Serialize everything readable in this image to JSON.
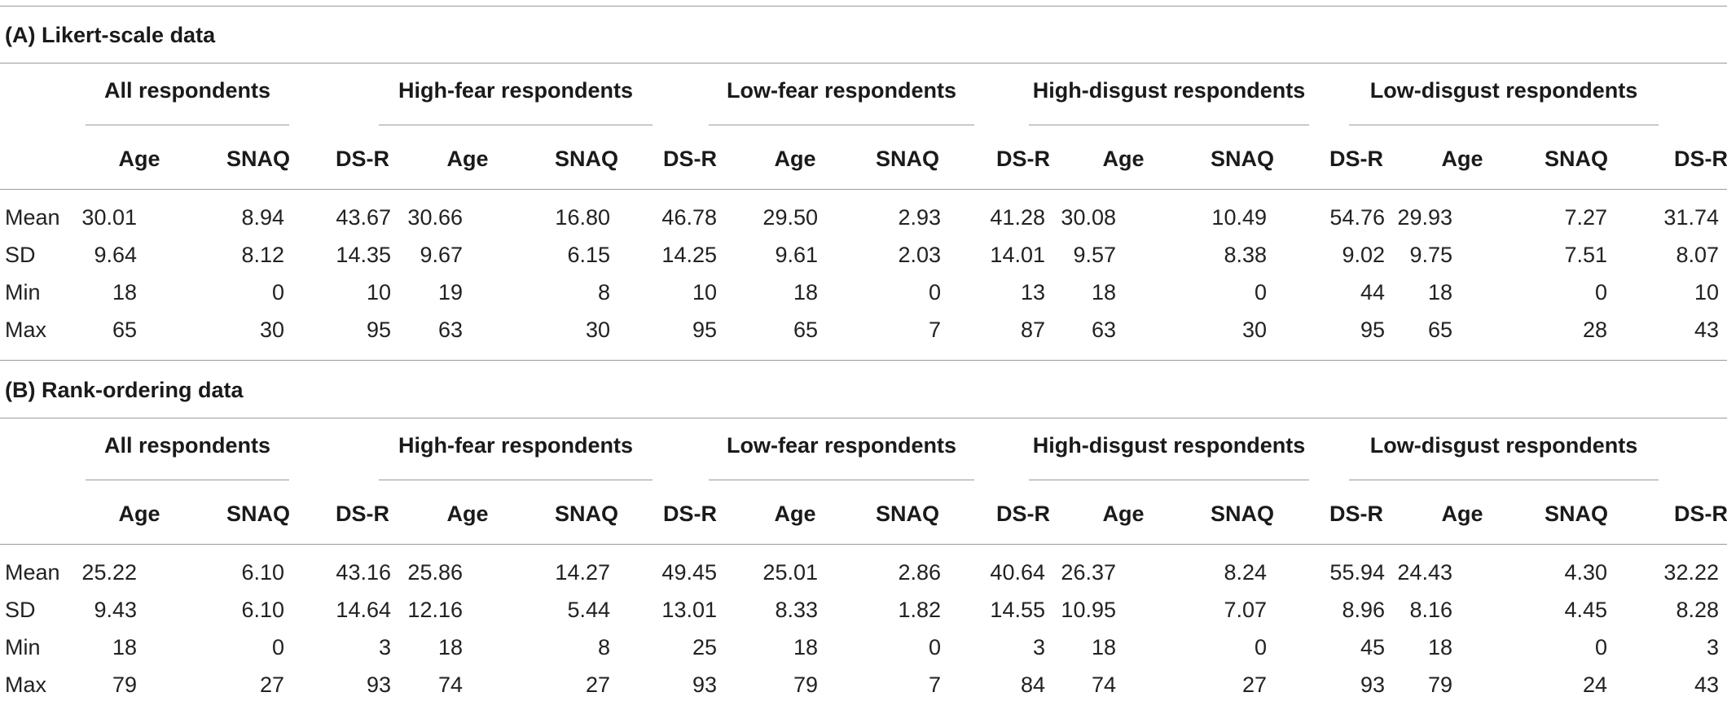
{
  "sections": [
    {
      "title": "(A) Likert-scale data",
      "groups": [
        "All respondents",
        "High-fear respondents",
        "Low-fear respondents",
        "High-disgust respondents",
        "Low-disgust respondents"
      ],
      "columns": [
        "Age",
        "SNAQ",
        "DS-R"
      ],
      "rows": [
        {
          "label": "Mean",
          "values": [
            "30.01",
            "8.94",
            "43.67",
            "30.66",
            "16.80",
            "46.78",
            "29.50",
            "2.93",
            "41.28",
            "30.08",
            "10.49",
            "54.76",
            "29.93",
            "7.27",
            "31.74"
          ]
        },
        {
          "label": "SD",
          "values": [
            "9.64",
            "8.12",
            "14.35",
            "9.67",
            "6.15",
            "14.25",
            "9.61",
            "2.03",
            "14.01",
            "9.57",
            "8.38",
            "9.02",
            "9.75",
            "7.51",
            "8.07"
          ]
        },
        {
          "label": "Min",
          "values": [
            "18",
            "0",
            "10",
            "19",
            "8",
            "10",
            "18",
            "0",
            "13",
            "18",
            "0",
            "44",
            "18",
            "0",
            "10"
          ]
        },
        {
          "label": "Max",
          "values": [
            "65",
            "30",
            "95",
            "63",
            "30",
            "95",
            "65",
            "7",
            "87",
            "63",
            "30",
            "95",
            "65",
            "28",
            "43"
          ]
        }
      ]
    },
    {
      "title": "(B) Rank-ordering data",
      "groups": [
        "All respondents",
        "High-fear respondents",
        "Low-fear respondents",
        "High-disgust respondents",
        "Low-disgust respondents"
      ],
      "columns": [
        "Age",
        "SNAQ",
        "DS-R"
      ],
      "rows": [
        {
          "label": "Mean",
          "values": [
            "25.22",
            "6.10",
            "43.16",
            "25.86",
            "14.27",
            "49.45",
            "25.01",
            "2.86",
            "40.64",
            "26.37",
            "8.24",
            "55.94",
            "24.43",
            "4.30",
            "32.22"
          ]
        },
        {
          "label": "SD",
          "values": [
            "9.43",
            "6.10",
            "14.64",
            "12.16",
            "5.44",
            "13.01",
            "8.33",
            "1.82",
            "14.55",
            "10.95",
            "7.07",
            "8.96",
            "8.16",
            "4.45",
            "8.28"
          ]
        },
        {
          "label": "Min",
          "values": [
            "18",
            "0",
            "3",
            "18",
            "8",
            "25",
            "18",
            "0",
            "3",
            "18",
            "0",
            "45",
            "18",
            "0",
            "3"
          ]
        },
        {
          "label": "Max",
          "values": [
            "79",
            "27",
            "93",
            "74",
            "27",
            "93",
            "79",
            "7",
            "84",
            "74",
            "27",
            "93",
            "79",
            "24",
            "43"
          ]
        }
      ]
    }
  ]
}
